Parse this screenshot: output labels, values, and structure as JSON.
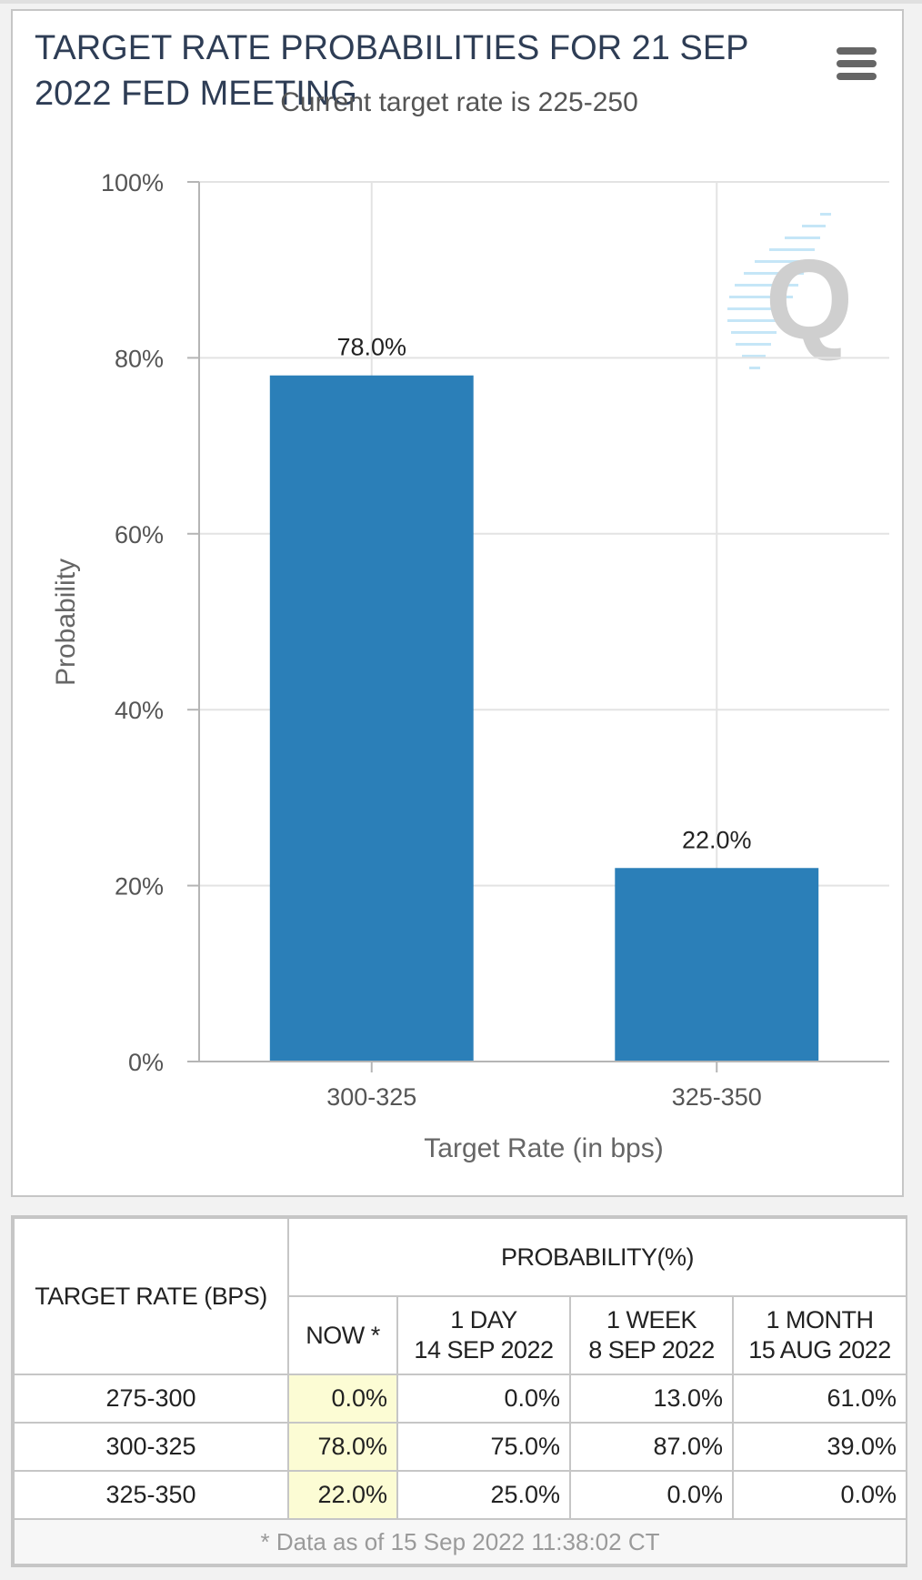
{
  "chart_data": {
    "type": "bar",
    "title": "TARGET RATE PROBABILITIES FOR 21 SEP 2022 FED MEETING",
    "subtitle": "Current target rate is 225-250",
    "xlabel": "Target Rate (in bps)",
    "ylabel": "Probability",
    "categories": [
      "300-325",
      "325-350"
    ],
    "values": [
      78.0,
      22.0
    ],
    "data_labels": [
      "78.0%",
      "22.0%"
    ],
    "ylim": [
      0,
      100
    ],
    "yticks": [
      0,
      20,
      40,
      60,
      80,
      100
    ],
    "ytick_labels": [
      "0%",
      "20%",
      "40%",
      "60%",
      "80%",
      "100%"
    ],
    "grid": true,
    "bar_color": "#2b7fb8",
    "watermark": "Q"
  },
  "menu": {
    "icon": "hamburger-menu-icon"
  },
  "table": {
    "row_header": "TARGET RATE (BPS)",
    "group_header": "PROBABILITY(%)",
    "columns": [
      {
        "line1": "NOW *",
        "line2": ""
      },
      {
        "line1": "1 DAY",
        "line2": "14 SEP 2022"
      },
      {
        "line1": "1 WEEK",
        "line2": "8 SEP 2022"
      },
      {
        "line1": "1 MONTH",
        "line2": "15 AUG 2022"
      }
    ],
    "rows": [
      {
        "rate": "275-300",
        "values": [
          "0.0%",
          "0.0%",
          "13.0%",
          "61.0%"
        ]
      },
      {
        "rate": "300-325",
        "values": [
          "78.0%",
          "75.0%",
          "87.0%",
          "39.0%"
        ]
      },
      {
        "rate": "325-350",
        "values": [
          "22.0%",
          "25.0%",
          "0.0%",
          "0.0%"
        ]
      }
    ],
    "footnote": "* Data as of 15 Sep 2022 11:38:02 CT",
    "now_highlight_color": "#fcfcd4"
  }
}
